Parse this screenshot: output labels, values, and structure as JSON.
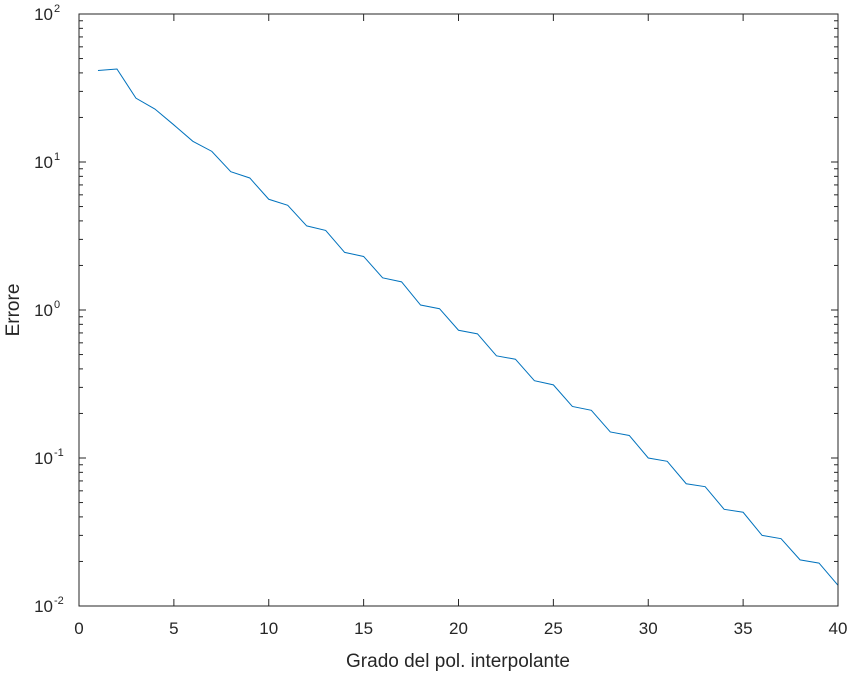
{
  "chart_data": {
    "type": "line",
    "xlabel": "Grado del pol. interpolante",
    "ylabel": "Errore",
    "xlim": [
      0,
      40
    ],
    "ylim": [
      0.01,
      100
    ],
    "yscale": "log",
    "grid": false,
    "box": true,
    "x_ticks": [
      0,
      5,
      10,
      15,
      20,
      25,
      30,
      35,
      40
    ],
    "x_tick_labels": [
      "0",
      "5",
      "10",
      "15",
      "20",
      "25",
      "30",
      "35",
      "40"
    ],
    "y_ticks": [
      0.01,
      0.1,
      1,
      10,
      100
    ],
    "y_tick_labels": [
      {
        "base": "10",
        "exp": "-2"
      },
      {
        "base": "10",
        "exp": "-1"
      },
      {
        "base": "10",
        "exp": "0"
      },
      {
        "base": "10",
        "exp": "1"
      },
      {
        "base": "10",
        "exp": "2"
      }
    ],
    "series": [
      {
        "color": "#0072BD",
        "x": [
          1,
          2,
          3,
          4,
          5,
          6,
          7,
          8,
          9,
          10,
          11,
          12,
          13,
          14,
          15,
          16,
          17,
          18,
          19,
          20,
          21,
          22,
          23,
          24,
          25,
          26,
          27,
          28,
          29,
          30,
          31,
          32,
          33,
          34,
          35,
          36,
          37,
          38,
          39,
          40
        ],
        "y": [
          41.5,
          42.5,
          27.0,
          22.8,
          17.8,
          13.8,
          11.8,
          8.6,
          7.8,
          5.6,
          5.1,
          3.7,
          3.45,
          2.45,
          2.3,
          1.65,
          1.55,
          1.08,
          1.02,
          0.73,
          0.69,
          0.49,
          0.465,
          0.333,
          0.312,
          0.223,
          0.21,
          0.15,
          0.142,
          0.1,
          0.095,
          0.067,
          0.064,
          0.045,
          0.043,
          0.03,
          0.0285,
          0.0205,
          0.0195,
          0.0138
        ]
      }
    ]
  }
}
